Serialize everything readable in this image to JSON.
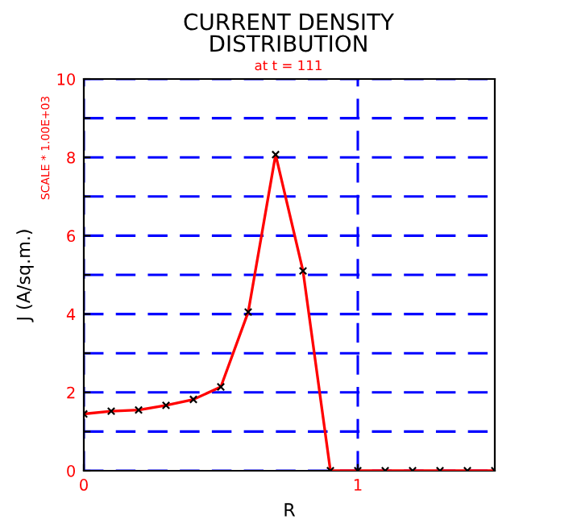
{
  "chart_data": {
    "type": "line",
    "title": "CURRENT DENSITY\nDISTRIBUTION",
    "subtitle": "at t = 111",
    "xlabel": "R",
    "ylabel": "J (A/sq.m.)",
    "annotations": [
      "SCALE * 1.00E+03"
    ],
    "x": [
      0,
      0.1,
      0.2,
      0.3,
      0.4,
      0.5,
      0.6,
      0.7,
      0.8,
      0.9,
      1.0,
      1.1,
      1.2,
      1.3,
      1.4,
      1.5
    ],
    "series": [
      {
        "color": "#ff0000",
        "values": [
          1.45,
          1.52,
          1.55,
          1.67,
          1.82,
          2.14,
          4.05,
          8.07,
          5.1,
          0,
          0,
          0,
          0,
          0,
          0,
          0
        ]
      }
    ],
    "marker": "cross",
    "line_style": "solid",
    "grid": true,
    "xlim": [
      0,
      1.5
    ],
    "xticks": [
      0,
      1
    ],
    "ylim": [
      0,
      10
    ],
    "yticks": [
      0,
      {
        "value": 1,
        "label": null
      },
      2,
      {
        "value": 3,
        "label": null
      },
      4,
      {
        "value": 5,
        "label": null
      },
      6,
      {
        "value": 7,
        "label": null
      },
      8,
      {
        "value": 9,
        "label": null
      },
      10
    ]
  }
}
